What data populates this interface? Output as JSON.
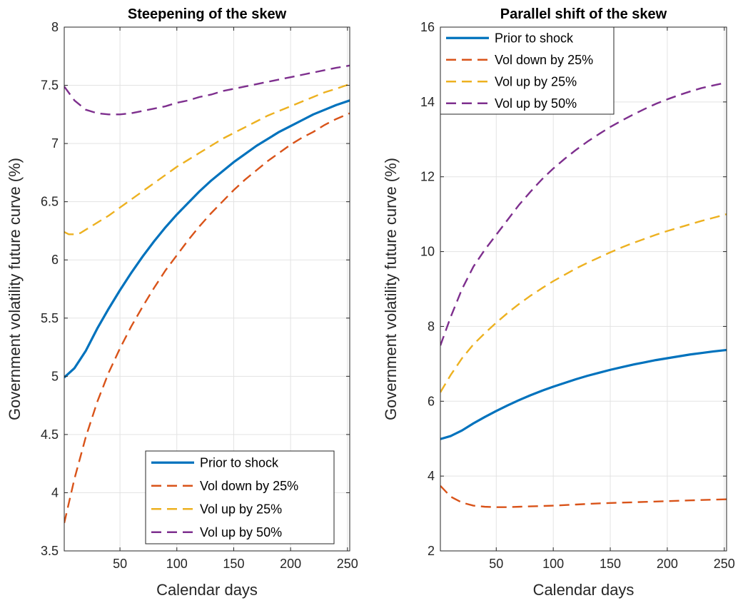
{
  "figure": {
    "background": "#ffffff"
  },
  "chart_data": [
    {
      "type": "line",
      "title": "Steepening of the skew",
      "xlabel": "Calendar days",
      "ylabel": "Government volatility future curve (%)",
      "xlim": [
        1,
        252
      ],
      "ylim": [
        3.5,
        8
      ],
      "xticks": [
        50,
        100,
        150,
        200,
        250
      ],
      "yticks": [
        3.5,
        4,
        4.5,
        5,
        5.5,
        6,
        6.5,
        7,
        7.5,
        8
      ],
      "ytick_labels": [
        "3.5",
        "4",
        "4.5",
        "5",
        "5.5",
        "6",
        "6.5",
        "7",
        "7.5",
        "8"
      ],
      "grid": true,
      "legend_position": "bottom-right",
      "series": [
        {
          "name": "Prior to shock",
          "color": "#0072BD",
          "style": "solid",
          "x": [
            1,
            10,
            20,
            30,
            40,
            50,
            60,
            70,
            80,
            90,
            100,
            110,
            120,
            130,
            140,
            150,
            160,
            170,
            180,
            190,
            200,
            210,
            220,
            230,
            240,
            252
          ],
          "y": [
            4.99,
            5.07,
            5.22,
            5.41,
            5.58,
            5.74,
            5.89,
            6.03,
            6.16,
            6.28,
            6.39,
            6.49,
            6.59,
            6.68,
            6.76,
            6.84,
            6.91,
            6.98,
            7.04,
            7.1,
            7.15,
            7.2,
            7.25,
            7.29,
            7.33,
            7.37
          ]
        },
        {
          "name": "Vol down by 25%",
          "color": "#D95319",
          "style": "dashed",
          "x": [
            1,
            10,
            20,
            30,
            40,
            50,
            60,
            70,
            80,
            90,
            100,
            110,
            120,
            130,
            140,
            150,
            160,
            170,
            180,
            190,
            200,
            210,
            220,
            230,
            240,
            252
          ],
          "y": [
            3.74,
            4.12,
            4.48,
            4.78,
            5.03,
            5.24,
            5.43,
            5.6,
            5.76,
            5.91,
            6.04,
            6.17,
            6.29,
            6.4,
            6.5,
            6.6,
            6.69,
            6.77,
            6.85,
            6.92,
            6.99,
            7.05,
            7.1,
            7.16,
            7.21,
            7.26
          ]
        },
        {
          "name": "Vol up by 25%",
          "color": "#EDB120",
          "style": "dashed",
          "x": [
            1,
            5,
            10,
            15,
            20,
            30,
            40,
            50,
            60,
            70,
            80,
            90,
            100,
            110,
            120,
            130,
            140,
            150,
            160,
            170,
            180,
            190,
            200,
            210,
            220,
            230,
            240,
            252
          ],
          "y": [
            6.24,
            6.22,
            6.22,
            6.23,
            6.26,
            6.32,
            6.38,
            6.45,
            6.52,
            6.59,
            6.66,
            6.73,
            6.8,
            6.86,
            6.92,
            6.98,
            7.04,
            7.09,
            7.14,
            7.19,
            7.24,
            7.28,
            7.32,
            7.36,
            7.4,
            7.44,
            7.47,
            7.51
          ]
        },
        {
          "name": "Vol up by 50%",
          "color": "#7E2F8E",
          "style": "dashed",
          "x": [
            1,
            10,
            20,
            30,
            40,
            50,
            60,
            70,
            80,
            90,
            100,
            110,
            120,
            130,
            140,
            150,
            160,
            170,
            180,
            190,
            200,
            210,
            220,
            230,
            240,
            252
          ],
          "y": [
            7.49,
            7.37,
            7.29,
            7.26,
            7.25,
            7.25,
            7.26,
            7.28,
            7.3,
            7.32,
            7.35,
            7.37,
            7.4,
            7.42,
            7.45,
            7.47,
            7.49,
            7.51,
            7.53,
            7.55,
            7.57,
            7.59,
            7.61,
            7.63,
            7.65,
            7.67
          ]
        }
      ]
    },
    {
      "type": "line",
      "title": "Parallel shift of the skew",
      "xlabel": "Calendar days",
      "ylabel": "Government volatility future curve (%)",
      "xlim": [
        1,
        252
      ],
      "ylim": [
        2,
        16
      ],
      "xticks": [
        50,
        100,
        150,
        200,
        250
      ],
      "yticks": [
        2,
        4,
        6,
        8,
        10,
        12,
        14,
        16
      ],
      "ytick_labels": [
        "2",
        "4",
        "6",
        "8",
        "10",
        "12",
        "14",
        "16"
      ],
      "grid": true,
      "legend_position": "top-left",
      "series": [
        {
          "name": "Prior to shock",
          "color": "#0072BD",
          "style": "solid",
          "x": [
            1,
            10,
            20,
            30,
            40,
            50,
            60,
            70,
            80,
            90,
            100,
            110,
            120,
            130,
            140,
            150,
            160,
            170,
            180,
            190,
            200,
            210,
            220,
            230,
            240,
            252
          ],
          "y": [
            4.99,
            5.07,
            5.22,
            5.41,
            5.58,
            5.74,
            5.89,
            6.03,
            6.16,
            6.28,
            6.39,
            6.49,
            6.59,
            6.68,
            6.76,
            6.84,
            6.91,
            6.98,
            7.04,
            7.1,
            7.15,
            7.2,
            7.25,
            7.29,
            7.33,
            7.37
          ]
        },
        {
          "name": "Vol down by 25%",
          "color": "#D95319",
          "style": "dashed",
          "x": [
            1,
            10,
            20,
            30,
            40,
            50,
            60,
            70,
            80,
            90,
            100,
            120,
            140,
            160,
            180,
            200,
            220,
            240,
            252
          ],
          "y": [
            3.74,
            3.45,
            3.29,
            3.21,
            3.18,
            3.17,
            3.17,
            3.18,
            3.19,
            3.2,
            3.21,
            3.24,
            3.27,
            3.29,
            3.31,
            3.33,
            3.35,
            3.37,
            3.38
          ]
        },
        {
          "name": "Vol up by 25%",
          "color": "#EDB120",
          "style": "dashed",
          "x": [
            1,
            10,
            20,
            30,
            40,
            50,
            60,
            70,
            80,
            90,
            100,
            110,
            120,
            130,
            140,
            150,
            160,
            170,
            180,
            190,
            200,
            210,
            220,
            230,
            240,
            252
          ],
          "y": [
            6.24,
            6.7,
            7.15,
            7.52,
            7.82,
            8.1,
            8.36,
            8.6,
            8.82,
            9.02,
            9.21,
            9.38,
            9.55,
            9.7,
            9.84,
            9.98,
            10.11,
            10.23,
            10.34,
            10.45,
            10.55,
            10.64,
            10.73,
            10.82,
            10.9,
            11.0
          ]
        },
        {
          "name": "Vol up by 50%",
          "color": "#7E2F8E",
          "style": "dashed",
          "x": [
            1,
            10,
            20,
            30,
            40,
            50,
            60,
            70,
            80,
            90,
            100,
            110,
            120,
            130,
            140,
            150,
            160,
            170,
            180,
            190,
            200,
            210,
            220,
            230,
            240,
            252
          ],
          "y": [
            7.49,
            8.25,
            9.0,
            9.6,
            10.05,
            10.45,
            10.85,
            11.25,
            11.6,
            11.93,
            12.22,
            12.48,
            12.72,
            12.94,
            13.14,
            13.33,
            13.5,
            13.66,
            13.81,
            13.95,
            14.07,
            14.18,
            14.28,
            14.37,
            14.44,
            14.52
          ]
        }
      ]
    }
  ]
}
